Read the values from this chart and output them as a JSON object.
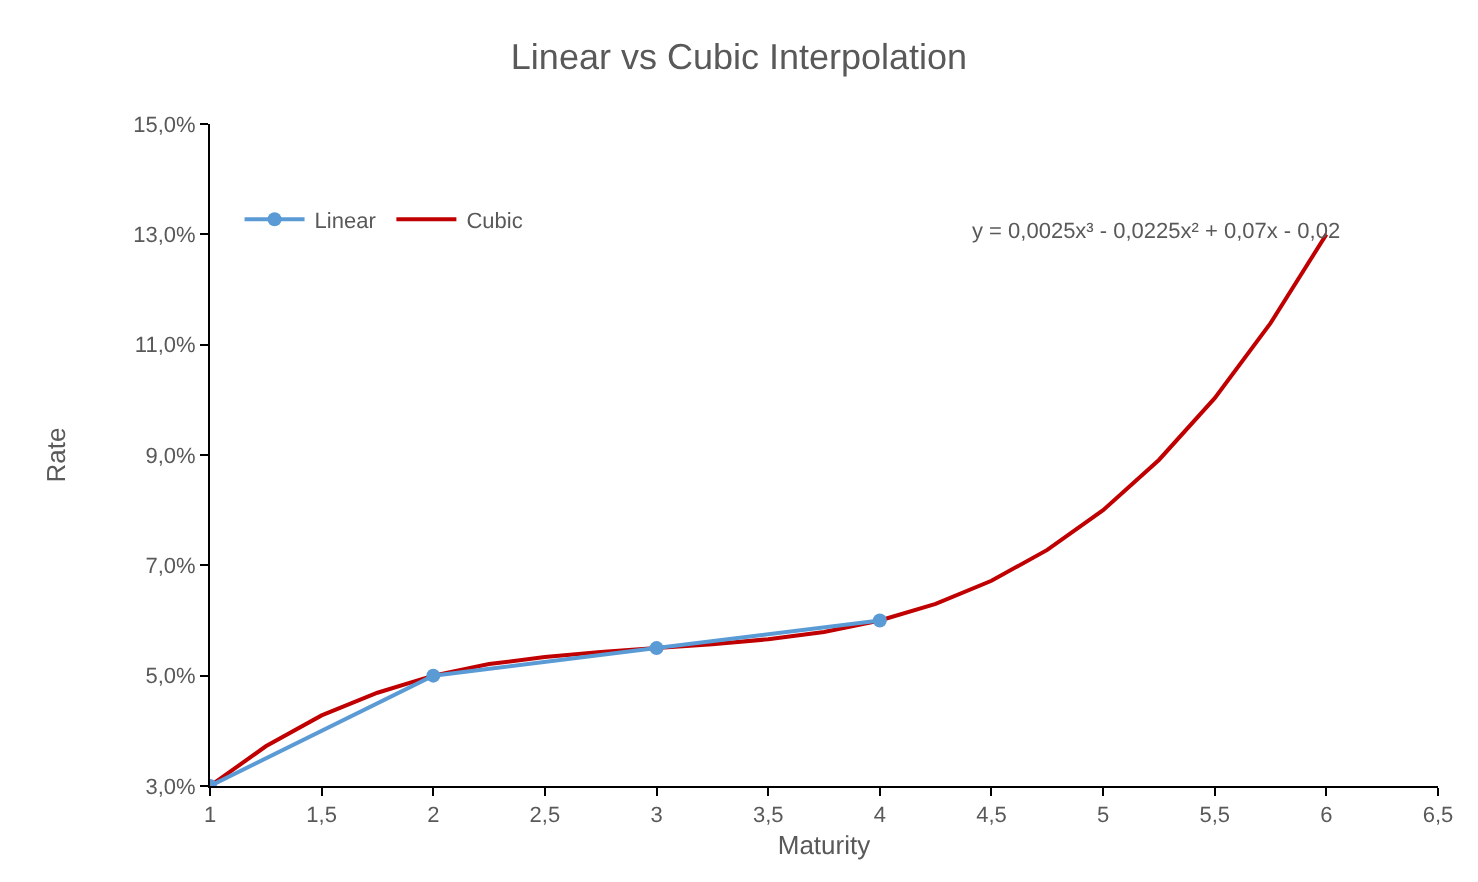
{
  "chart_data": {
    "type": "line",
    "title": "Linear vs Cubic Interpolation",
    "xlabel": "Maturity",
    "ylabel": "Rate",
    "annotations": [
      "y = 0,0025x³ - 0,0225x² + 0,07x - 0,02"
    ],
    "series": [
      {
        "name": "Linear",
        "color": "#5b9bd5",
        "marker": "circle",
        "x": [
          1,
          2,
          3,
          4
        ],
        "values": [
          3,
          5,
          5.5,
          6
        ]
      },
      {
        "name": "Cubic",
        "color": "#c00000",
        "marker": "none",
        "x": [
          1,
          1.25,
          1.5,
          1.75,
          2,
          2.25,
          2.5,
          2.75,
          3,
          3.25,
          3.5,
          3.75,
          4,
          4.25,
          4.5,
          4.75,
          5,
          5.25,
          5.5,
          5.75,
          6
        ],
        "values": [
          3,
          3.72,
          4.28,
          4.69,
          5,
          5.21,
          5.34,
          5.43,
          5.5,
          5.57,
          5.66,
          5.79,
          6,
          6.3,
          6.72,
          7.28,
          8,
          8.91,
          10.03,
          11.39,
          13
        ]
      }
    ],
    "xlim": [
      1,
      6.5
    ],
    "xticks": [
      1,
      {
        "value": 1.5,
        "label": "1,5"
      },
      2,
      {
        "value": 2.5,
        "label": "2,5"
      },
      3,
      {
        "value": 3.5,
        "label": "3,5"
      },
      4,
      {
        "value": 4.5,
        "label": "4,5"
      },
      5,
      {
        "value": 5.5,
        "label": "5,5"
      },
      6,
      {
        "value": 6.5,
        "label": "6,5"
      }
    ],
    "ylim": [
      3,
      15
    ],
    "yticks": [
      {
        "value": 3,
        "label": "3,0%"
      },
      {
        "value": 5,
        "label": "5,0%"
      },
      {
        "value": 7,
        "label": "7,0%"
      },
      {
        "value": 9,
        "label": "9,0%"
      },
      {
        "value": 11,
        "label": "11,0%"
      },
      {
        "value": 13,
        "label": "13,0%"
      },
      {
        "value": 15,
        "label": "15,0%"
      }
    ],
    "grid": false,
    "legend": "top left",
    "line_style": "solid"
  }
}
